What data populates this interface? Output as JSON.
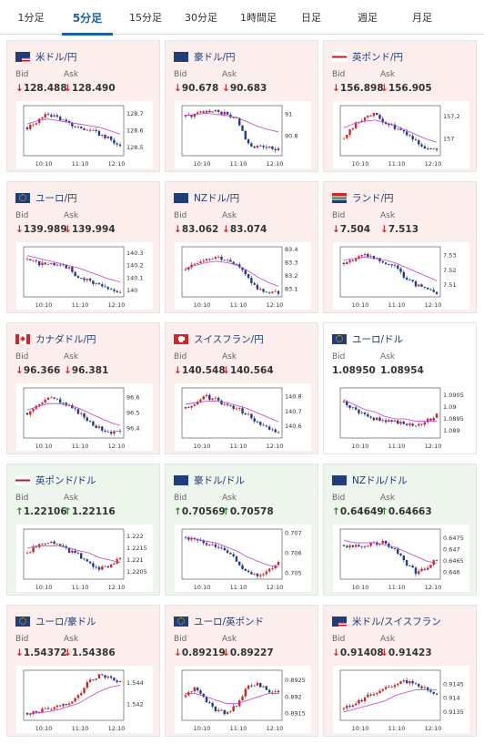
{
  "tabs": [
    {
      "label": "1分足",
      "active": false
    },
    {
      "label": "5分足",
      "active": true
    },
    {
      "label": "15分足",
      "active": false
    },
    {
      "label": "30分足",
      "active": false
    },
    {
      "label": "1時間足",
      "active": false
    },
    {
      "label": "日足",
      "active": false
    },
    {
      "label": "週足",
      "active": false
    },
    {
      "label": "月足",
      "active": false
    }
  ],
  "labels": {
    "bid": "Bid",
    "ask": "Ask"
  },
  "colors": {
    "down_bg": "#fbeeed",
    "up_bg": "#eef5ec",
    "flat_bg": "#ffffff",
    "bull_candle": "#d4252a",
    "bear_candle": "#1f3d8a",
    "ma_line": "#c23fd0",
    "ma_line2": "#2a9be0",
    "arrow_down": "#d4252a",
    "arrow_up": "#2a8a2a"
  },
  "cards": [
    {
      "name": "米ドル/円",
      "flag": "us-jp-flag",
      "direction": "down",
      "bid": "128.488",
      "ask": "128.490",
      "chart_data": {
        "type": "candlestick",
        "x_ticks": [
          "10:10",
          "11:10",
          "12:10"
        ],
        "y_ticks": [
          "128.7",
          "128.6",
          "128.5"
        ],
        "ylim": [
          128.45,
          128.75
        ],
        "trend": [
          128.62,
          128.66,
          128.7,
          128.68,
          128.64,
          128.62,
          128.6,
          128.58,
          128.55,
          128.5
        ],
        "ma": [
          128.64,
          128.66,
          128.67,
          128.66,
          128.65,
          128.64,
          128.63,
          128.62,
          128.6,
          128.58
        ]
      }
    },
    {
      "name": "豪ドル/円",
      "flag": "au-jp-flag",
      "direction": "down",
      "bid": "90.678",
      "ask": "90.683",
      "chart_data": {
        "type": "candlestick",
        "x_ticks": [
          "10:10",
          "11:10",
          "12:10"
        ],
        "y_ticks": [
          "91",
          "90.8"
        ],
        "ylim": [
          90.62,
          91.08
        ],
        "trend": [
          90.98,
          91.0,
          91.02,
          91.03,
          91.0,
          90.95,
          90.72,
          90.7,
          90.69,
          90.68
        ],
        "ma": [
          90.99,
          91.0,
          91.01,
          91.0,
          90.99,
          90.97,
          90.93,
          90.89,
          90.86,
          90.84
        ]
      }
    },
    {
      "name": "英ポンド/円",
      "flag": "gb-jp-flag",
      "direction": "down",
      "bid": "156.898",
      "ask": "156.905",
      "chart_data": {
        "type": "candlestick",
        "x_ticks": [
          "10:10",
          "11:10",
          "12:10"
        ],
        "y_ticks": [
          "157.2",
          "157"
        ],
        "ylim": [
          156.85,
          157.3
        ],
        "trend": [
          157.0,
          157.12,
          157.2,
          157.22,
          157.15,
          157.1,
          157.05,
          156.98,
          156.92,
          156.9
        ],
        "ma": [
          157.1,
          157.14,
          157.16,
          157.17,
          157.15,
          157.12,
          157.08,
          157.04,
          157.0,
          156.97
        ]
      }
    },
    {
      "name": "ユーロ/円",
      "flag": "eu-jp-flag",
      "direction": "down",
      "bid": "139.989",
      "ask": "139.994",
      "chart_data": {
        "type": "candlestick",
        "x_ticks": [
          "10:10",
          "11:10",
          "12:10"
        ],
        "y_ticks": [
          "140.3",
          "140.2",
          "140.1",
          "140"
        ],
        "ylim": [
          139.95,
          140.35
        ],
        "trend": [
          140.25,
          140.22,
          140.2,
          140.22,
          140.18,
          140.1,
          140.08,
          140.05,
          140.0,
          139.99
        ],
        "ma": [
          140.28,
          140.26,
          140.24,
          140.22,
          140.2,
          140.18,
          140.15,
          140.12,
          140.09,
          140.07
        ]
      }
    },
    {
      "name": "NZドル/円",
      "flag": "nz-jp-flag",
      "direction": "down",
      "bid": "83.062",
      "ask": "83.074",
      "chart_data": {
        "type": "candlestick",
        "x_ticks": [
          "10:10",
          "11:10",
          "12:10"
        ],
        "y_ticks": [
          "83.4",
          "83.3",
          "83.2",
          "83.1"
        ],
        "ylim": [
          83.04,
          83.42
        ],
        "trend": [
          83.25,
          83.3,
          83.33,
          83.35,
          83.32,
          83.28,
          83.18,
          83.1,
          83.08,
          83.07
        ],
        "ma": [
          83.26,
          83.28,
          83.3,
          83.31,
          83.3,
          83.28,
          83.24,
          83.19,
          83.15,
          83.12
        ]
      }
    },
    {
      "name": "ランド/円",
      "flag": "za-jp-flag",
      "direction": "down",
      "bid": "7.504",
      "ask": "7.513",
      "chart_data": {
        "type": "candlestick",
        "x_ticks": [
          "10:10",
          "11:10",
          "12:10"
        ],
        "y_ticks": [
          "7.53",
          "7.52",
          "7.51"
        ],
        "ylim": [
          7.502,
          7.536
        ],
        "trend": [
          7.525,
          7.528,
          7.53,
          7.528,
          7.525,
          7.522,
          7.515,
          7.51,
          7.507,
          7.505
        ],
        "ma": [
          7.527,
          7.528,
          7.529,
          7.528,
          7.527,
          7.525,
          7.522,
          7.519,
          7.516,
          7.513
        ]
      }
    },
    {
      "name": "カナダドル/円",
      "flag": "ca-jp-flag",
      "direction": "down",
      "bid": "96.366",
      "ask": "96.381",
      "chart_data": {
        "type": "candlestick",
        "x_ticks": [
          "10:10",
          "11:10",
          "12:10"
        ],
        "y_ticks": [
          "96.6",
          "96.5",
          "96.4"
        ],
        "ylim": [
          96.34,
          96.66
        ],
        "trend": [
          96.5,
          96.55,
          96.6,
          96.58,
          96.54,
          96.5,
          96.45,
          96.4,
          96.38,
          96.37
        ],
        "ma": [
          96.52,
          96.54,
          96.56,
          96.56,
          96.55,
          96.53,
          96.5,
          96.47,
          96.44,
          96.42
        ]
      }
    },
    {
      "name": "スイスフラン/円",
      "flag": "ch-jp-flag",
      "direction": "down",
      "bid": "140.548",
      "ask": "140.564",
      "chart_data": {
        "type": "candlestick",
        "x_ticks": [
          "10:10",
          "11:10",
          "12:10"
        ],
        "y_ticks": [
          "140.8",
          "140.7",
          "140.6"
        ],
        "ylim": [
          140.52,
          140.86
        ],
        "trend": [
          140.72,
          140.76,
          140.8,
          140.78,
          140.74,
          140.72,
          140.68,
          140.62,
          140.58,
          140.55
        ],
        "ma": [
          140.75,
          140.76,
          140.77,
          140.77,
          140.76,
          140.74,
          140.72,
          140.69,
          140.66,
          140.63
        ]
      }
    },
    {
      "name": "ユーロ/ドル",
      "flag": "eu-us-flag",
      "direction": "flat",
      "bid": "1.08950",
      "ask": "1.08954",
      "chart_data": {
        "type": "candlestick",
        "x_ticks": [
          "10:10",
          "11:10",
          "12:10"
        ],
        "y_ticks": [
          "1.0905",
          "1.09",
          "1.0895",
          "1.089"
        ],
        "ylim": [
          1.0887,
          1.0908
        ],
        "trend": [
          1.0902,
          1.0899,
          1.0897,
          1.0895,
          1.0894,
          1.0894,
          1.0893,
          1.0892,
          1.0894,
          1.0897
        ],
        "ma": [
          1.0903,
          1.0901,
          1.0899,
          1.0898,
          1.0896,
          1.0895,
          1.0895,
          1.0894,
          1.0894,
          1.0894
        ]
      }
    },
    {
      "name": "英ポンド/ドル",
      "flag": "gb-us-flag",
      "direction": "up",
      "bid": "1.22106",
      "ask": "1.22116",
      "chart_data": {
        "type": "candlestick",
        "x_ticks": [
          "10:10",
          "11:10",
          "12:10"
        ],
        "y_ticks": [
          "1.222",
          "1.2215",
          "1.221",
          "1.2205"
        ],
        "ylim": [
          1.2202,
          1.2223
        ],
        "trend": [
          1.2213,
          1.2216,
          1.2218,
          1.2217,
          1.2214,
          1.2212,
          1.2209,
          1.2206,
          1.2208,
          1.2211
        ],
        "ma": [
          1.2215,
          1.2216,
          1.2216,
          1.2216,
          1.2215,
          1.2214,
          1.2213,
          1.2211,
          1.221,
          1.2209
        ]
      }
    },
    {
      "name": "豪ドル/ドル",
      "flag": "au-us-flag",
      "direction": "up",
      "bid": "0.70569",
      "ask": "0.70578",
      "chart_data": {
        "type": "candlestick",
        "x_ticks": [
          "10:10",
          "11:10",
          "12:10"
        ],
        "y_ticks": [
          "0.707",
          "0.706",
          "0.705"
        ],
        "ylim": [
          0.7047,
          0.7072
        ],
        "trend": [
          0.7068,
          0.7066,
          0.7064,
          0.7063,
          0.706,
          0.7056,
          0.705,
          0.7049,
          0.7051,
          0.7056
        ],
        "ma": [
          0.7068,
          0.7067,
          0.7066,
          0.7065,
          0.7063,
          0.7061,
          0.7058,
          0.7056,
          0.7054,
          0.7053
        ]
      }
    },
    {
      "name": "NZドル/ドル",
      "flag": "nz-us-flag",
      "direction": "up",
      "bid": "0.64649",
      "ask": "0.64663",
      "chart_data": {
        "type": "candlestick",
        "x_ticks": [
          "10:10",
          "11:10",
          "12:10"
        ],
        "y_ticks": [
          "0.6475",
          "0.647",
          "0.6465",
          "0.646"
        ],
        "ylim": [
          0.6457,
          0.6479
        ],
        "trend": [
          0.6472,
          0.6471,
          0.6472,
          0.6473,
          0.6473,
          0.647,
          0.6464,
          0.646,
          0.6462,
          0.6466
        ],
        "ma": [
          0.6474,
          0.6473,
          0.6473,
          0.6473,
          0.6472,
          0.6471,
          0.6469,
          0.6467,
          0.6465,
          0.6464
        ]
      }
    },
    {
      "name": "ユーロ/豪ドル",
      "flag": "eu-au-flag",
      "direction": "down",
      "bid": "1.54372",
      "ask": "1.54386",
      "chart_data": {
        "type": "candlestick",
        "x_ticks": [
          "10:10",
          "11:10",
          "12:10"
        ],
        "y_ticks": [
          "1.544",
          "1.542"
        ],
        "ylim": [
          1.5405,
          1.5452
        ],
        "trend": [
          1.5412,
          1.5414,
          1.5415,
          1.5418,
          1.5422,
          1.5428,
          1.5443,
          1.5447,
          1.5445,
          1.544
        ],
        "ma": [
          1.5411,
          1.5412,
          1.5413,
          1.5415,
          1.5418,
          1.5421,
          1.5427,
          1.5432,
          1.5436,
          1.5438
        ]
      }
    },
    {
      "name": "ユーロ/英ポンド",
      "flag": "eu-gb-flag",
      "direction": "down",
      "bid": "0.89219",
      "ask": "0.89227",
      "chart_data": {
        "type": "candlestick",
        "x_ticks": [
          "10:10",
          "11:10",
          "12:10"
        ],
        "y_ticks": [
          "0.8925",
          "0.892",
          "0.8915"
        ],
        "ylim": [
          0.8913,
          0.8928
        ],
        "trend": [
          0.892,
          0.8923,
          0.8919,
          0.8916,
          0.8915,
          0.8918,
          0.8923,
          0.8924,
          0.8922,
          0.8921
        ],
        "ma": [
          0.8921,
          0.8921,
          0.892,
          0.8919,
          0.8918,
          0.8918,
          0.8919,
          0.892,
          0.8921,
          0.8921
        ]
      }
    },
    {
      "name": "米ドル/スイスフラン",
      "flag": "us-ch-flag",
      "direction": "down",
      "bid": "0.91408",
      "ask": "0.91423",
      "chart_data": {
        "type": "candlestick",
        "x_ticks": [
          "10:10",
          "11:10",
          "12:10"
        ],
        "y_ticks": [
          "0.9145",
          "0.914",
          "0.9135"
        ],
        "ylim": [
          0.9132,
          0.915
        ],
        "trend": [
          0.9136,
          0.9138,
          0.914,
          0.9142,
          0.9144,
          0.9145,
          0.9146,
          0.9145,
          0.9143,
          0.9141
        ],
        "ma": [
          0.9135,
          0.9136,
          0.9137,
          0.9138,
          0.9139,
          0.9141,
          0.9142,
          0.9143,
          0.9143,
          0.9143
        ]
      }
    }
  ]
}
